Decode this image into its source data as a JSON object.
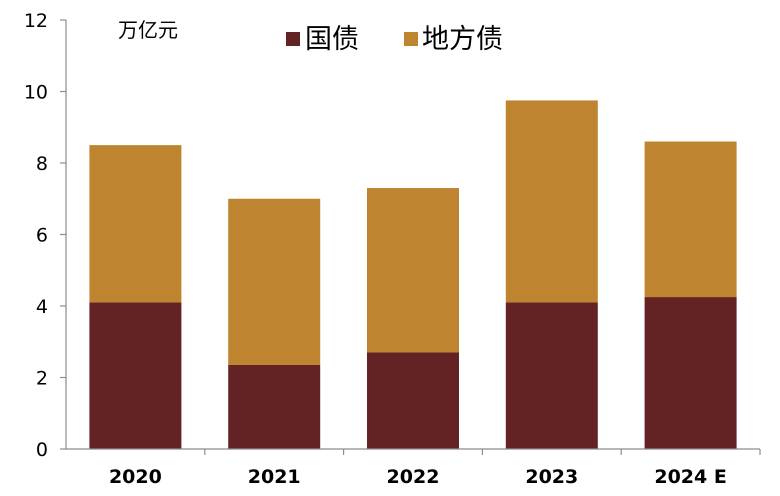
{
  "chart_data": {
    "type": "bar",
    "stacked": true,
    "unit_label": "万亿元",
    "categories": [
      "2020",
      "2021",
      "2022",
      "2023",
      "2024 E"
    ],
    "series": [
      {
        "name": "国债",
        "color": "#632325",
        "values": [
          4.1,
          2.35,
          2.7,
          4.1,
          4.25
        ]
      },
      {
        "name": "地方债",
        "color": "#BE8430",
        "values": [
          4.4,
          4.65,
          4.6,
          5.65,
          4.35
        ]
      }
    ],
    "ylim": [
      0,
      12
    ],
    "yticks": [
      "0",
      "2",
      "4",
      "6",
      "8",
      "10",
      "12"
    ],
    "legend_position": "top",
    "grid": false
  }
}
